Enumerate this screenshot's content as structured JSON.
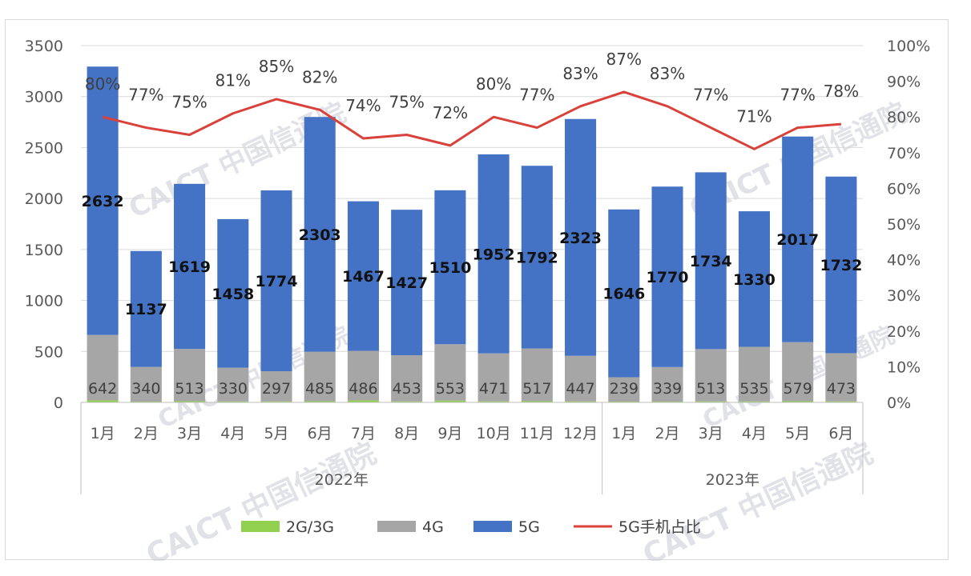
{
  "watermark": "CAICT 中国信通院",
  "chart_data": {
    "type": "bar",
    "stacked": true,
    "categories": [
      "1月",
      "2月",
      "3月",
      "4月",
      "5月",
      "6月",
      "7月",
      "8月",
      "9月",
      "10月",
      "11月",
      "12月",
      "1月",
      "2月",
      "3月",
      "4月",
      "5月",
      "6月"
    ],
    "groups": [
      {
        "label": "2022年",
        "count": 12
      },
      {
        "label": "2023年",
        "count": 6
      }
    ],
    "series": [
      {
        "name": "2G/3G",
        "color": "#92d050",
        "values": [
          20,
          8,
          12,
          10,
          9,
          12,
          20,
          10,
          18,
          10,
          12,
          10,
          8,
          8,
          10,
          10,
          12,
          10
        ]
      },
      {
        "name": "4G",
        "color": "#a6a6a6",
        "values": [
          642,
          340,
          513,
          330,
          297,
          485,
          486,
          453,
          553,
          471,
          517,
          447,
          239,
          339,
          513,
          535,
          579,
          473
        ]
      },
      {
        "name": "5G",
        "color": "#4472c4",
        "values": [
          2632,
          1137,
          1619,
          1458,
          1774,
          2303,
          1467,
          1427,
          1510,
          1952,
          1792,
          2323,
          1646,
          1770,
          1734,
          1330,
          2017,
          1732
        ]
      }
    ],
    "line": {
      "name": "5G手机占比",
      "color": "#d9413a",
      "values": [
        80,
        77,
        75,
        81,
        85,
        82,
        74,
        75,
        72,
        80,
        77,
        83,
        87,
        83,
        77,
        71,
        77,
        78
      ],
      "labels": [
        "80%",
        "77%",
        "75%",
        "81%",
        "85%",
        "82%",
        "74%",
        "75%",
        "72%",
        "80%",
        "77%",
        "83%",
        "87%",
        "83%",
        "77%",
        "71%",
        "77%",
        "78%"
      ]
    },
    "y_left": {
      "min": 0,
      "max": 3500,
      "step": 500,
      "ticks": [
        "0",
        "500",
        "1000",
        "1500",
        "2000",
        "2500",
        "3000",
        "3500"
      ]
    },
    "y_right": {
      "min": 0,
      "max": 100,
      "step": 10,
      "ticks": [
        "0%",
        "10%",
        "20%",
        "30%",
        "40%",
        "50%",
        "60%",
        "70%",
        "80%",
        "90%",
        "100%"
      ]
    },
    "grid": true,
    "legend_position": "bottom"
  }
}
